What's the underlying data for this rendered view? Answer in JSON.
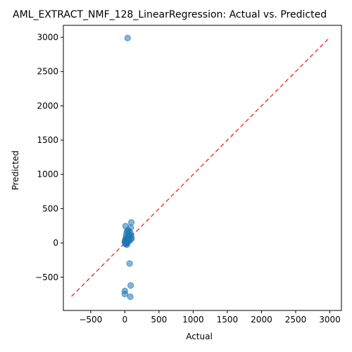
{
  "chart_data": {
    "type": "scatter",
    "title": "AML_EXTRACT_NMF_128_LinearRegression: Actual vs. Predicted",
    "xlabel": "Actual",
    "ylabel": "Predicted",
    "xlim": [
      -900,
      3170
    ],
    "ylim": [
      -985,
      3175
    ],
    "xticks": [
      -500,
      0,
      500,
      1000,
      1500,
      2000,
      2500,
      3000
    ],
    "yticks": [
      -500,
      0,
      500,
      1000,
      1500,
      2000,
      2500,
      3000
    ],
    "xtick_labels": [
      "−500",
      "0",
      "500",
      "1000",
      "1500",
      "2000",
      "2500",
      "3000"
    ],
    "ytick_labels": [
      "−500",
      "0",
      "500",
      "1000",
      "1500",
      "2000",
      "2500",
      "3000"
    ],
    "grid": false,
    "point_color": "#1f77b4",
    "reference_line": {
      "style": "dashed",
      "color": "#e8413a",
      "from": [
        -780,
        -780
      ],
      "to": [
        2980,
        2980
      ]
    },
    "points": [
      {
        "x": 40,
        "y": 2990
      },
      {
        "x": 95,
        "y": 300
      },
      {
        "x": 10,
        "y": 245
      },
      {
        "x": 85,
        "y": 225
      },
      {
        "x": 40,
        "y": 185
      },
      {
        "x": 55,
        "y": 175
      },
      {
        "x": 30,
        "y": 160
      },
      {
        "x": 80,
        "y": 150
      },
      {
        "x": 60,
        "y": 130
      },
      {
        "x": 20,
        "y": 120
      },
      {
        "x": 90,
        "y": 110
      },
      {
        "x": 70,
        "y": 95
      },
      {
        "x": 45,
        "y": 90
      },
      {
        "x": 15,
        "y": 80
      },
      {
        "x": 100,
        "y": 70
      },
      {
        "x": 25,
        "y": 60
      },
      {
        "x": 35,
        "y": 55
      },
      {
        "x": 85,
        "y": 50
      },
      {
        "x": 5,
        "y": 45
      },
      {
        "x": 50,
        "y": 40
      },
      {
        "x": 10,
        "y": 35
      },
      {
        "x": 65,
        "y": 30
      },
      {
        "x": 30,
        "y": 25
      },
      {
        "x": 15,
        "y": 20
      },
      {
        "x": 0,
        "y": 15
      },
      {
        "x": 40,
        "y": 10
      },
      {
        "x": 20,
        "y": 5
      },
      {
        "x": 5,
        "y": 0
      },
      {
        "x": 25,
        "y": -10
      },
      {
        "x": 10,
        "y": -15
      },
      {
        "x": 30,
        "y": -25
      },
      {
        "x": 70,
        "y": -300
      },
      {
        "x": 85,
        "y": -620
      },
      {
        "x": 0,
        "y": -700
      },
      {
        "x": 0,
        "y": -745
      },
      {
        "x": 80,
        "y": -785
      }
    ]
  }
}
